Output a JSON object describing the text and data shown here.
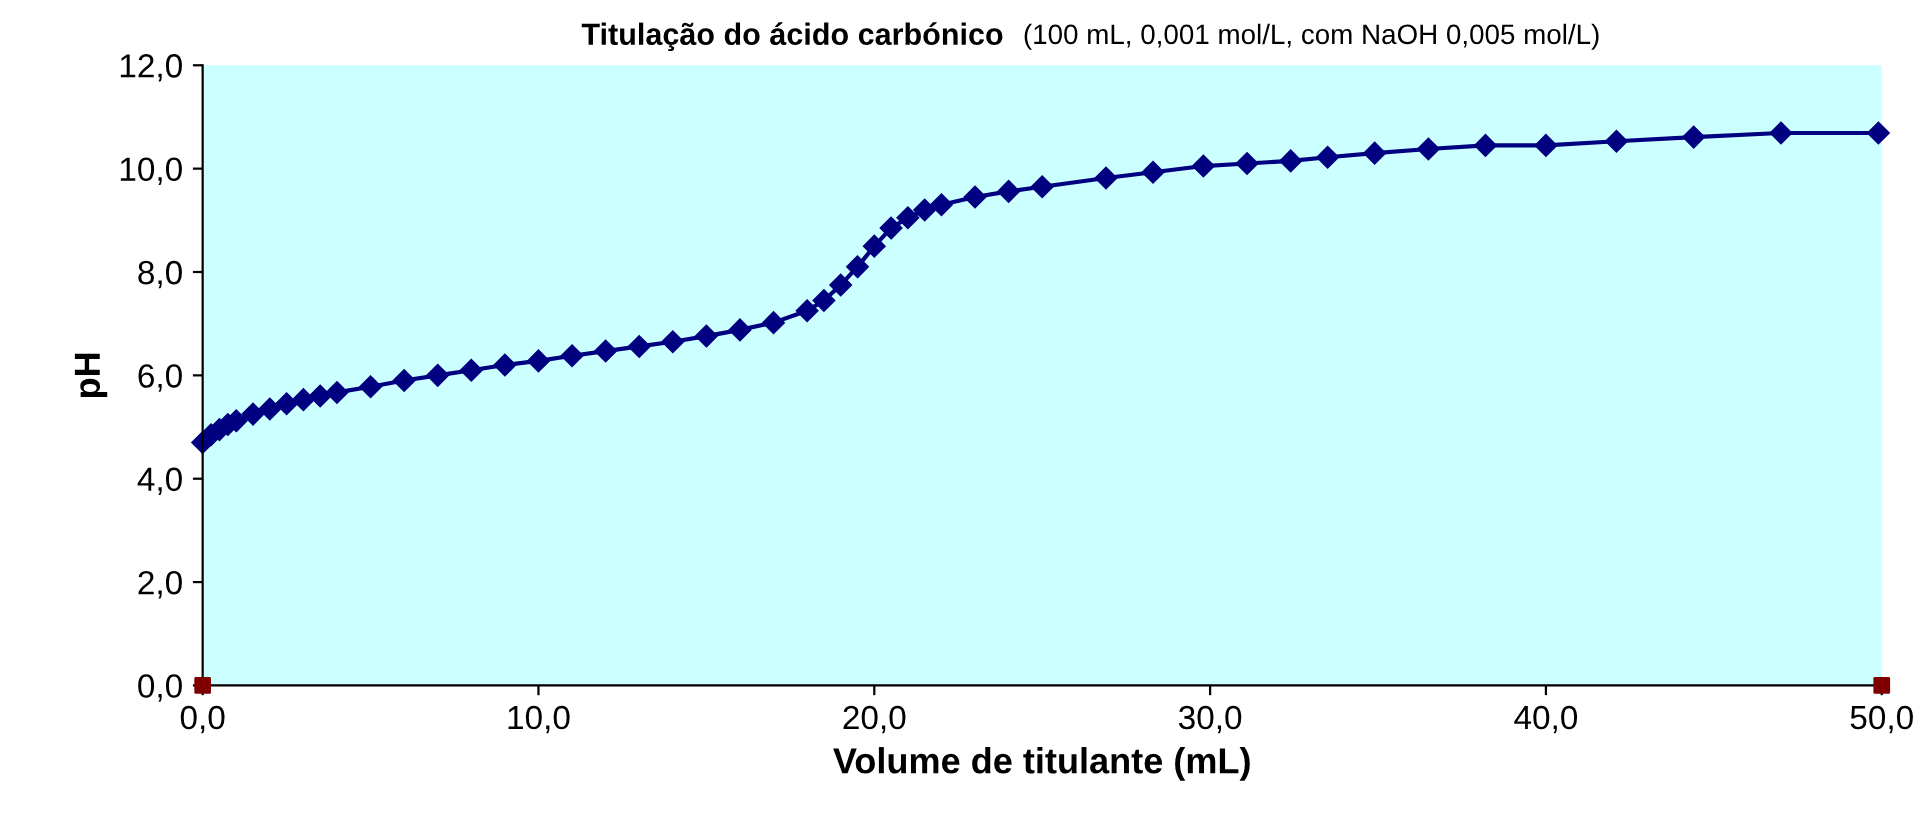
{
  "chart_data": {
    "type": "line",
    "title": "Titulação do ácido carbónico",
    "subtitle": "(100 mL, 0,001 mol/L, com NaOH 0,005 mol/L)",
    "xlabel": "Volume de titulante (mL)",
    "ylabel": "pH",
    "xlim": [
      0,
      50
    ],
    "ylim": [
      0,
      12
    ],
    "xticks": [
      {
        "value": 0,
        "label": "0,0"
      },
      {
        "value": 10,
        "label": "10,0"
      },
      {
        "value": 20,
        "label": "20,0"
      },
      {
        "value": 30,
        "label": "30,0"
      },
      {
        "value": 40,
        "label": "40,0"
      },
      {
        "value": 50,
        "label": "50,0"
      }
    ],
    "yticks": [
      {
        "value": 0,
        "label": "0,0"
      },
      {
        "value": 2,
        "label": "2,0"
      },
      {
        "value": 4,
        "label": "4,0"
      },
      {
        "value": 6,
        "label": "6,0"
      },
      {
        "value": 8,
        "label": "8,0"
      },
      {
        "value": 10,
        "label": "10,0"
      },
      {
        "value": 12,
        "label": "12,0"
      }
    ],
    "grid": false,
    "marker": "diamond",
    "line_style": "solid",
    "series": [
      {
        "color": "#000080",
        "x": [
          0,
          0.25,
          0.5,
          0.75,
          1,
          1.5,
          2,
          2.5,
          3,
          3.5,
          4,
          5,
          6,
          7,
          8,
          9,
          10,
          11,
          12,
          13,
          14,
          15,
          16,
          17,
          18,
          18.5,
          19,
          19.5,
          20,
          20.5,
          21,
          21.5,
          22,
          23,
          24,
          25,
          26.9,
          28.3,
          29.8,
          31.1,
          32.4,
          33.5,
          34.9,
          36.5,
          38.2,
          40,
          42.1,
          44.4,
          47,
          49.9
        ],
        "values": [
          4.7,
          4.85,
          4.95,
          5.05,
          5.12,
          5.25,
          5.35,
          5.45,
          5.53,
          5.6,
          5.67,
          5.78,
          5.9,
          6.0,
          6.1,
          6.2,
          6.28,
          6.38,
          6.47,
          6.56,
          6.65,
          6.76,
          6.88,
          7.02,
          7.25,
          7.45,
          7.75,
          8.1,
          8.5,
          8.85,
          9.05,
          9.2,
          9.3,
          9.45,
          9.56,
          9.65,
          9.82,
          9.93,
          10.05,
          10.1,
          10.15,
          10.22,
          10.3,
          10.38,
          10.45,
          10.45,
          10.53,
          10.61,
          10.69,
          10.69
        ]
      },
      {
        "type": "scatter",
        "color": "#800000",
        "marker": "square",
        "x": [
          0,
          50
        ],
        "values": [
          0,
          0
        ]
      }
    ]
  }
}
